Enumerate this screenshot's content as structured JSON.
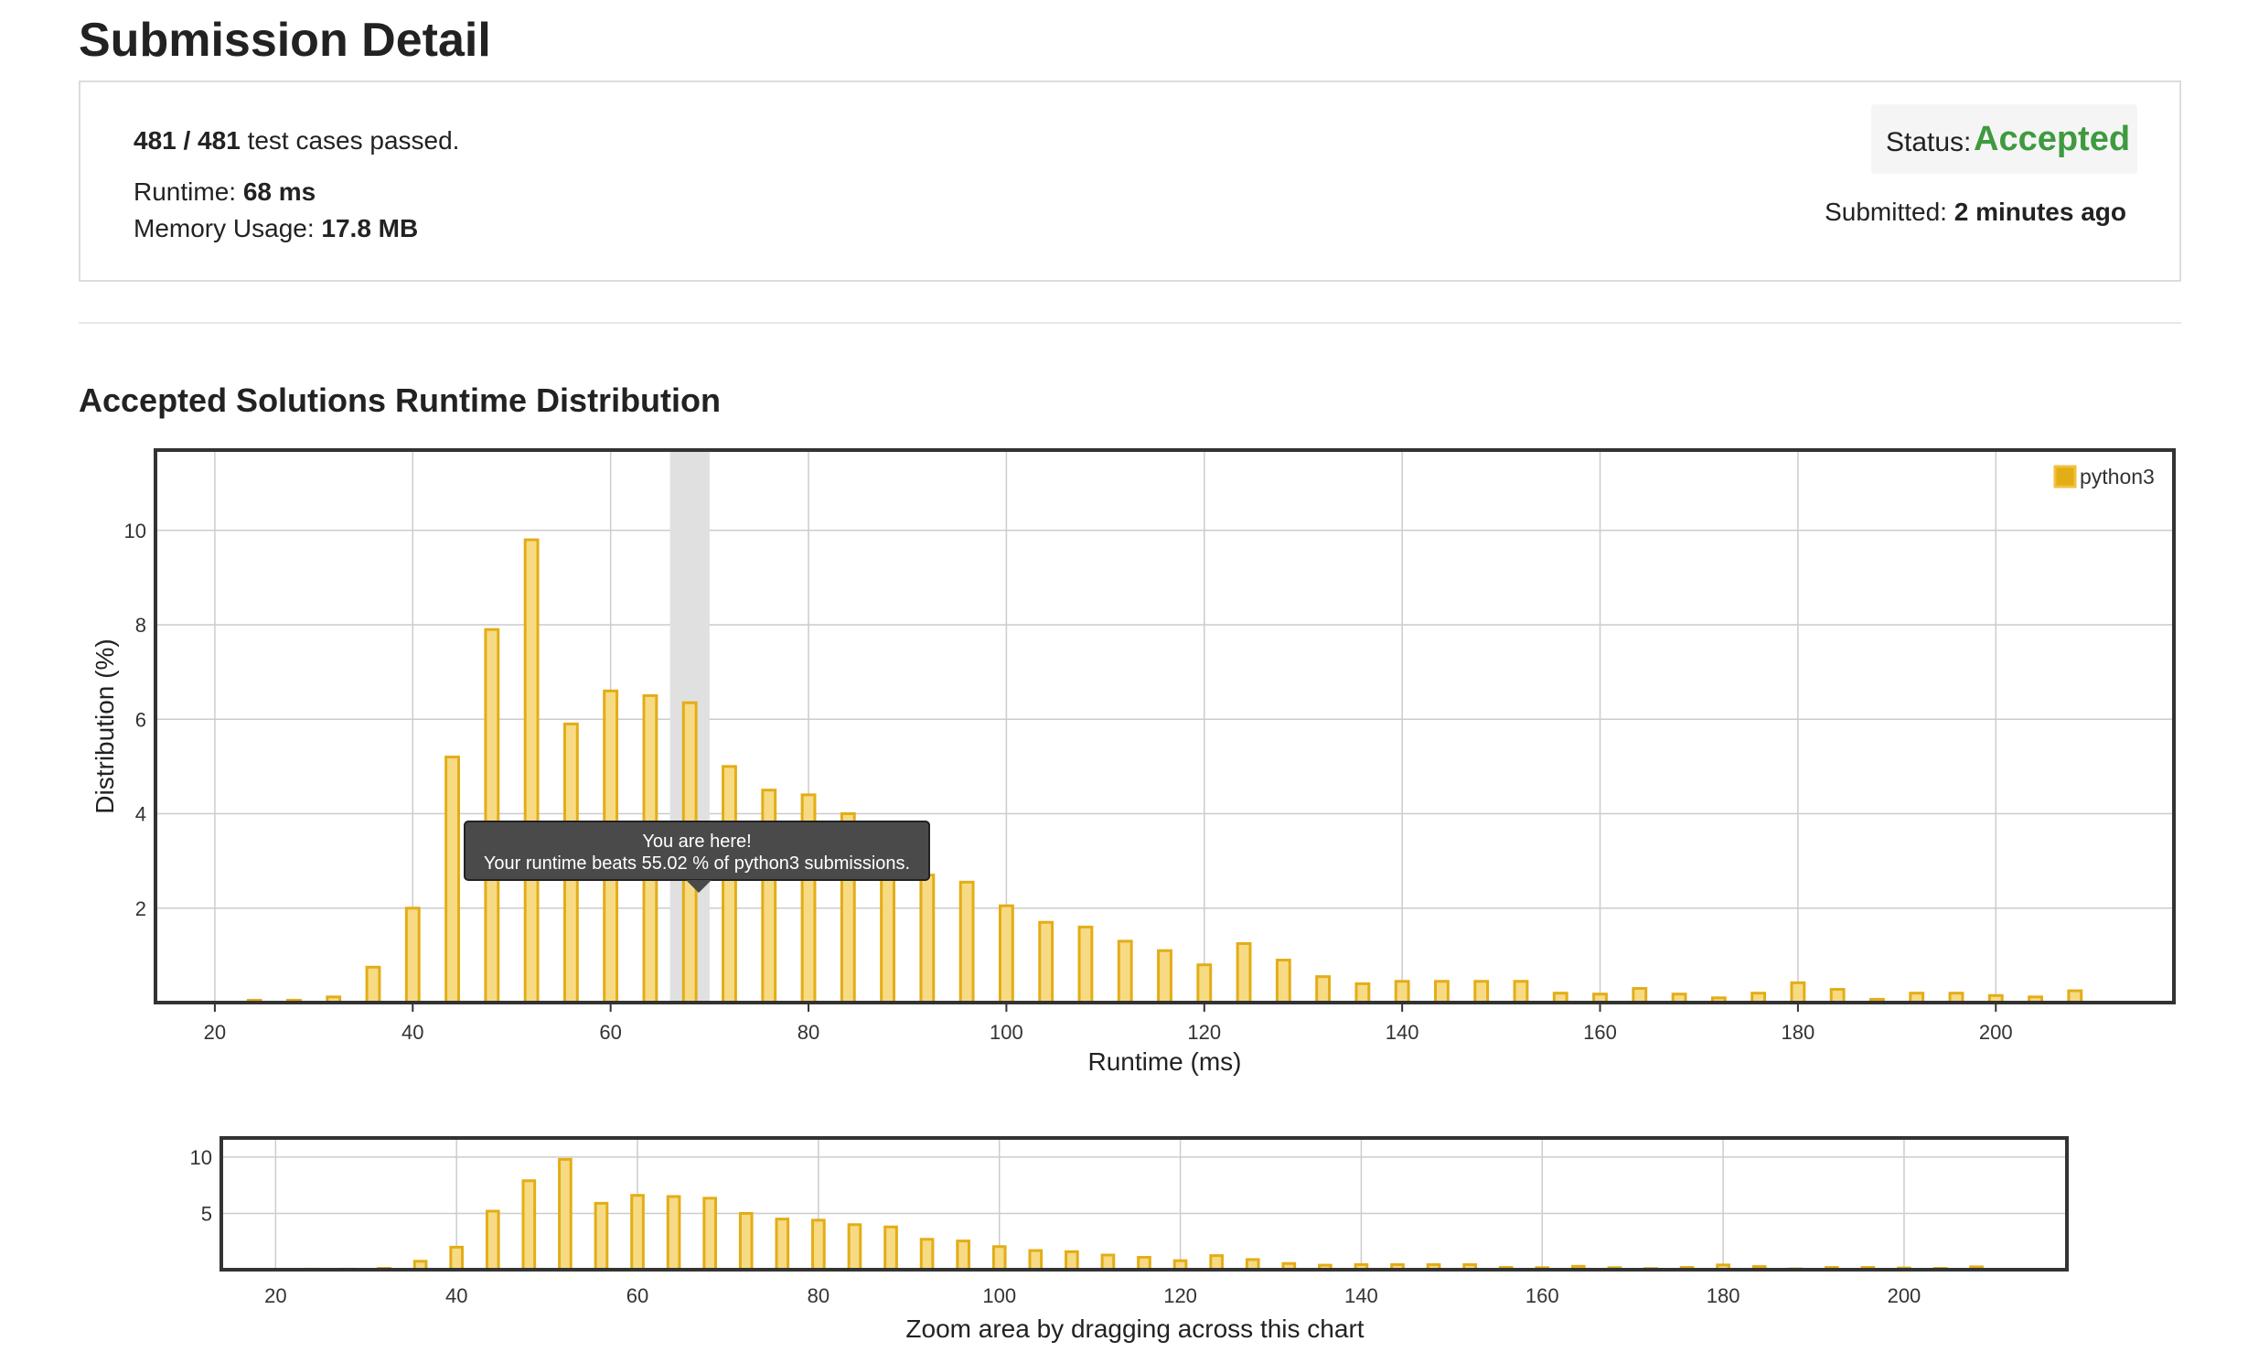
{
  "page": {
    "title": "Submission Detail",
    "section_title": "Accepted Solutions Runtime Distribution"
  },
  "summary": {
    "cases_count": "481 / 481",
    "cases_suffix": "test cases passed.",
    "runtime_label": "Runtime:",
    "runtime_value": "68 ms",
    "memory_label": "Memory Usage:",
    "memory_value": "17.8 MB",
    "status_label": "Status:",
    "status_value": "Accepted",
    "submitted_label": "Submitted:",
    "submitted_value": "2 minutes ago"
  },
  "colors": {
    "accepted": "#3e9a3e",
    "bar_fill": "#f7da84",
    "bar_stroke": "#e3ad16",
    "highlight": "#e0e0e0",
    "tooltip_bg": "#4a4a4a"
  },
  "tooltip": {
    "line1": "You are here!",
    "line2": "Your runtime beats 55.02 % of python3 submissions."
  },
  "navigator": {
    "caption": "Zoom area by dragging across this chart",
    "y_ticks": [
      "5",
      "10"
    ],
    "x_ticks": [
      "20",
      "40",
      "60",
      "80",
      "100",
      "120",
      "140",
      "160",
      "180",
      "200"
    ]
  },
  "chart_data": {
    "type": "bar",
    "xlabel": "Runtime (ms)",
    "ylabel": "Distribution (%)",
    "xlim": [
      14,
      218
    ],
    "ylim": [
      0,
      11.7
    ],
    "x_ticks": [
      "20",
      "40",
      "60",
      "80",
      "100",
      "120",
      "140",
      "160",
      "180",
      "200"
    ],
    "y_ticks": [
      "2",
      "4",
      "6",
      "8",
      "10"
    ],
    "grid": true,
    "legend_position": "top-right",
    "highlight_x": 68,
    "series": [
      {
        "name": "python3",
        "x": [
          24,
          28,
          32,
          36,
          40,
          44,
          48,
          52,
          56,
          60,
          64,
          68,
          72,
          76,
          80,
          84,
          88,
          92,
          96,
          100,
          104,
          108,
          112,
          116,
          120,
          124,
          128,
          132,
          136,
          140,
          144,
          148,
          152,
          156,
          160,
          164,
          168,
          172,
          176,
          180,
          184,
          188,
          192,
          196,
          200,
          204,
          208
        ],
        "values": [
          0.05,
          0.05,
          0.12,
          0.75,
          2.0,
          5.2,
          7.9,
          9.8,
          5.9,
          6.6,
          6.5,
          6.35,
          5.0,
          4.5,
          4.4,
          4.0,
          3.8,
          2.7,
          2.55,
          2.05,
          1.7,
          1.6,
          1.3,
          1.1,
          0.8,
          1.25,
          0.9,
          0.55,
          0.4,
          0.45,
          0.45,
          0.45,
          0.45,
          0.2,
          0.18,
          0.3,
          0.18,
          0.1,
          0.2,
          0.42,
          0.28,
          0.07,
          0.2,
          0.2,
          0.15,
          0.12,
          0.25
        ]
      }
    ]
  }
}
